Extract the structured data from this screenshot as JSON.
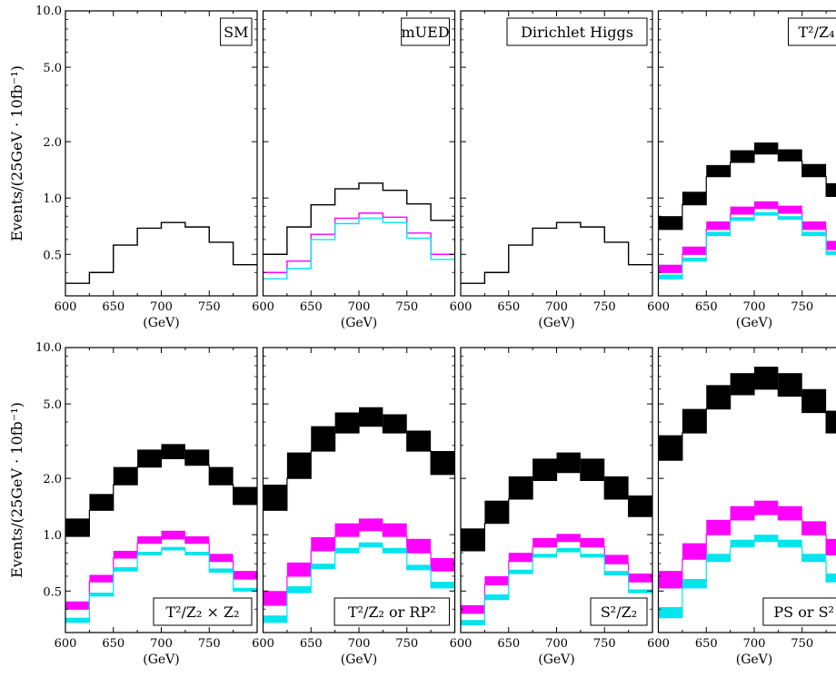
{
  "figure": {
    "ylabel": "Events/(25GeV · 10fb⁻¹)",
    "xlabel": "(GeV)",
    "x_ticks": [
      "600",
      "650",
      "700",
      "750"
    ],
    "y_ticks": [
      "10.0",
      "5.0",
      "2.0",
      "1.0",
      "0.5"
    ]
  },
  "colors": {
    "black": "#000000",
    "magenta": "#ff00ff",
    "cyan": "#00e5ee"
  },
  "chart_data": [
    {
      "type": "histogram",
      "panel": 1,
      "title": "SM",
      "x_edges": [
        600,
        625,
        650,
        675,
        700,
        725,
        750,
        775,
        800
      ],
      "xlim": [
        600,
        800
      ],
      "ylim": [
        0.3,
        10
      ],
      "y_scale": "log",
      "legend_position": "top-right",
      "series": [
        {
          "color": "black",
          "values": [
            0.35,
            0.4,
            0.56,
            0.69,
            0.74,
            0.7,
            0.58,
            0.44
          ]
        }
      ]
    },
    {
      "type": "histogram",
      "panel": 2,
      "title": "mUED",
      "x_edges": [
        600,
        625,
        650,
        675,
        700,
        725,
        750,
        775,
        800
      ],
      "xlim": [
        600,
        800
      ],
      "ylim": [
        0.3,
        10
      ],
      "y_scale": "log",
      "legend_position": "top-right",
      "series": [
        {
          "color": "black",
          "values": [
            0.5,
            0.7,
            0.92,
            1.12,
            1.2,
            1.1,
            0.93,
            0.76
          ]
        },
        {
          "color": "magenta",
          "values": [
            0.4,
            0.46,
            0.64,
            0.78,
            0.83,
            0.79,
            0.65,
            0.5
          ]
        },
        {
          "color": "cyan",
          "values": [
            0.37,
            0.42,
            0.6,
            0.73,
            0.78,
            0.74,
            0.61,
            0.47
          ]
        }
      ]
    },
    {
      "type": "histogram",
      "panel": 3,
      "title": "Dirichlet Higgs",
      "x_edges": [
        600,
        625,
        650,
        675,
        700,
        725,
        750,
        775,
        800
      ],
      "xlim": [
        600,
        800
      ],
      "ylim": [
        0.3,
        10
      ],
      "y_scale": "log",
      "legend_position": "top-right",
      "series": [
        {
          "color": "black",
          "values": [
            0.35,
            0.4,
            0.56,
            0.69,
            0.74,
            0.7,
            0.58,
            0.44
          ]
        }
      ]
    },
    {
      "type": "histogram",
      "panel": 4,
      "title": "T²/Z₄",
      "x_edges": [
        600,
        625,
        650,
        675,
        700,
        725,
        750,
        775,
        800
      ],
      "xlim": [
        600,
        800
      ],
      "ylim": [
        0.3,
        10
      ],
      "y_scale": "log",
      "legend_position": "top-right",
      "series": [
        {
          "color": "black",
          "low": [
            0.68,
            0.92,
            1.3,
            1.55,
            1.72,
            1.58,
            1.3,
            1.02
          ],
          "high": [
            0.8,
            1.08,
            1.5,
            1.8,
            1.98,
            1.82,
            1.52,
            1.2
          ]
        },
        {
          "color": "magenta",
          "low": [
            0.4,
            0.5,
            0.68,
            0.82,
            0.88,
            0.83,
            0.68,
            0.53
          ],
          "high": [
            0.44,
            0.55,
            0.75,
            0.9,
            0.96,
            0.91,
            0.75,
            0.59
          ]
        },
        {
          "color": "cyan",
          "low": [
            0.37,
            0.46,
            0.63,
            0.76,
            0.81,
            0.77,
            0.63,
            0.5
          ],
          "high": [
            0.39,
            0.48,
            0.66,
            0.79,
            0.84,
            0.8,
            0.66,
            0.52
          ]
        }
      ]
    },
    {
      "type": "histogram",
      "panel": 5,
      "title": "T²/Z₂ × Z₂",
      "x_edges": [
        600,
        625,
        650,
        675,
        700,
        725,
        750,
        775,
        800
      ],
      "xlim": [
        600,
        800
      ],
      "ylim": [
        0.3,
        10
      ],
      "y_scale": "log",
      "legend_position": "bottom-right",
      "series": [
        {
          "color": "black",
          "low": [
            0.98,
            1.35,
            1.85,
            2.3,
            2.55,
            2.35,
            1.85,
            1.45
          ],
          "high": [
            1.22,
            1.65,
            2.3,
            2.85,
            3.05,
            2.85,
            2.3,
            1.8
          ]
        },
        {
          "color": "magenta",
          "low": [
            0.4,
            0.56,
            0.75,
            0.9,
            0.95,
            0.9,
            0.72,
            0.58
          ],
          "high": [
            0.44,
            0.61,
            0.82,
            0.98,
            1.05,
            0.98,
            0.79,
            0.64
          ]
        },
        {
          "color": "cyan",
          "low": [
            0.34,
            0.47,
            0.64,
            0.78,
            0.83,
            0.78,
            0.63,
            0.5
          ],
          "high": [
            0.36,
            0.49,
            0.67,
            0.81,
            0.86,
            0.81,
            0.66,
            0.52
          ]
        }
      ]
    },
    {
      "type": "histogram",
      "panel": 6,
      "title": "T²/Z₂ or RP²",
      "x_edges": [
        600,
        625,
        650,
        675,
        700,
        725,
        750,
        775,
        800
      ],
      "xlim": [
        600,
        800
      ],
      "ylim": [
        0.3,
        10
      ],
      "y_scale": "log",
      "legend_position": "bottom-right",
      "series": [
        {
          "color": "black",
          "low": [
            1.35,
            2.0,
            2.8,
            3.5,
            3.8,
            3.5,
            2.8,
            2.1
          ],
          "high": [
            1.85,
            2.75,
            3.8,
            4.5,
            4.8,
            4.4,
            3.6,
            2.8
          ]
        },
        {
          "color": "magenta",
          "low": [
            0.42,
            0.6,
            0.82,
            0.98,
            1.05,
            0.98,
            0.8,
            0.64
          ],
          "high": [
            0.5,
            0.71,
            0.97,
            1.15,
            1.22,
            1.15,
            0.95,
            0.75
          ]
        },
        {
          "color": "cyan",
          "low": [
            0.34,
            0.49,
            0.66,
            0.8,
            0.86,
            0.8,
            0.65,
            0.52
          ],
          "high": [
            0.37,
            0.53,
            0.7,
            0.85,
            0.91,
            0.85,
            0.69,
            0.56
          ]
        }
      ]
    },
    {
      "type": "histogram",
      "panel": 7,
      "title": "S²/Z₂",
      "x_edges": [
        600,
        625,
        650,
        675,
        700,
        725,
        750,
        775,
        800
      ],
      "xlim": [
        600,
        800
      ],
      "ylim": [
        0.3,
        10
      ],
      "y_scale": "log",
      "legend_position": "bottom-right",
      "series": [
        {
          "color": "black",
          "low": [
            0.82,
            1.15,
            1.55,
            1.95,
            2.15,
            1.95,
            1.55,
            1.25
          ],
          "high": [
            1.08,
            1.52,
            2.05,
            2.55,
            2.75,
            2.55,
            2.05,
            1.62
          ]
        },
        {
          "color": "magenta",
          "low": [
            0.38,
            0.54,
            0.72,
            0.86,
            0.92,
            0.86,
            0.7,
            0.56
          ],
          "high": [
            0.42,
            0.6,
            0.8,
            0.96,
            1.01,
            0.96,
            0.78,
            0.62
          ]
        },
        {
          "color": "cyan",
          "low": [
            0.33,
            0.45,
            0.62,
            0.76,
            0.81,
            0.76,
            0.61,
            0.49
          ],
          "high": [
            0.35,
            0.48,
            0.65,
            0.79,
            0.85,
            0.79,
            0.64,
            0.51
          ]
        }
      ]
    },
    {
      "type": "histogram",
      "panel": 8,
      "title": "PS or S²",
      "x_edges": [
        600,
        625,
        650,
        675,
        700,
        725,
        750,
        775,
        800
      ],
      "xlim": [
        600,
        800
      ],
      "ylim": [
        0.3,
        10
      ],
      "y_scale": "log",
      "legend_position": "bottom-right",
      "series": [
        {
          "color": "black",
          "low": [
            2.5,
            3.5,
            4.7,
            5.6,
            6.0,
            5.5,
            4.5,
            3.5
          ],
          "high": [
            3.4,
            4.7,
            6.3,
            7.3,
            7.9,
            7.3,
            6.0,
            4.6
          ]
        },
        {
          "color": "magenta",
          "low": [
            0.52,
            0.74,
            1.0,
            1.2,
            1.28,
            1.2,
            1.0,
            0.78
          ],
          "high": [
            0.64,
            0.9,
            1.2,
            1.42,
            1.52,
            1.42,
            1.18,
            0.95
          ]
        },
        {
          "color": "cyan",
          "low": [
            0.36,
            0.52,
            0.72,
            0.86,
            0.92,
            0.86,
            0.72,
            0.56
          ],
          "high": [
            0.41,
            0.58,
            0.79,
            0.94,
            1.0,
            0.94,
            0.79,
            0.62
          ]
        }
      ]
    }
  ]
}
